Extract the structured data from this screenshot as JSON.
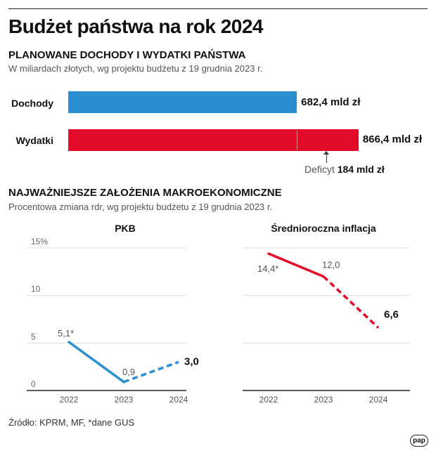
{
  "title": "Budżet państwa na rok 2024",
  "section1": {
    "heading": "PLANOWANE DOCHODY I WYDATKI PAŃSTWA",
    "subtitle": "W miliardach złotych, wg projektu budżetu z 19 grudnia 2023 r."
  },
  "section2": {
    "heading": "NAJWAŻNIEJSZE ZAŁOŻENIA MAKROEKONOMICZNE",
    "subtitle": "Procentowa zmiana rdr, wg projektu budżetu z 19 grudnia 2023 r."
  },
  "source": "Źródło: KPRM, MF, *dane GUS",
  "logo": "pap",
  "chart_data": [
    {
      "type": "bar",
      "orientation": "horizontal",
      "categories": [
        "Dochody",
        "Wydatki"
      ],
      "values": [
        682.4,
        866.4
      ],
      "value_labels": [
        "682,4 mld zł",
        "866,4 mld zł"
      ],
      "colors": [
        "#2a8fd0",
        "#e30b2a"
      ],
      "annotation": {
        "label": "Deficyt",
        "value": 184,
        "value_label": "184 mld zł"
      }
    },
    {
      "type": "line",
      "title": "PKB",
      "categories": [
        "2022",
        "2023",
        "2024"
      ],
      "values": [
        5.1,
        0.9,
        3.0
      ],
      "data_labels": [
        "5,1*",
        "0,9",
        "3,0"
      ],
      "forecast_from": "2023",
      "color": "#2a8fd0",
      "ylim": [
        0,
        15
      ],
      "yticks": [
        "0",
        "5",
        "10",
        "15%"
      ],
      "grid": true
    },
    {
      "type": "line",
      "title": "Średnioroczna inflacja",
      "categories": [
        "2022",
        "2023",
        "2024"
      ],
      "values": [
        14.4,
        12.0,
        6.6
      ],
      "data_labels": [
        "14,4*",
        "12,0",
        "6,6"
      ],
      "forecast_from": "2023",
      "color": "#e30b2a",
      "ylim": [
        0,
        15
      ],
      "grid": true
    }
  ]
}
